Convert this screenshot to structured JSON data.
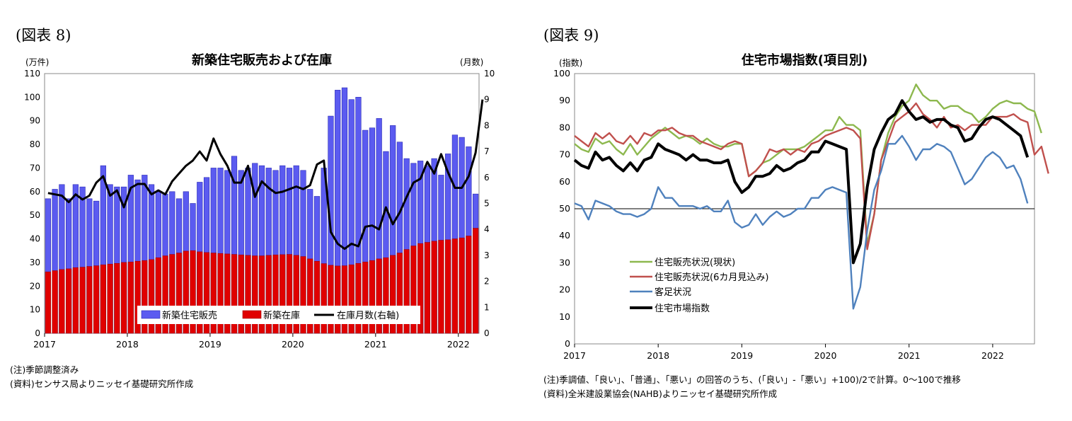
{
  "figure8": {
    "label": "(図表 8)",
    "notes": [
      "(注)季節調整済み",
      "(資料)センサス局よりニッセイ基礎研究所作成"
    ]
  },
  "figure9": {
    "label": "(図表 9)",
    "notes": [
      "(注)季調値、「良い」、「普通」、「悪い」の回答のうち、(「良い」-「悪い」+100)/2で計算。0〜100で推移",
      "(資料)全米建設業協会(NAHB)よりニッセイ基礎研究所作成"
    ]
  },
  "chart_data": [
    {
      "type": "bar",
      "title": "新築住宅販売および在庫",
      "ylabel": "(万件)",
      "y2label": "(月数)",
      "ylim": [
        0,
        110
      ],
      "y2lim": [
        0,
        10
      ],
      "yticks": [
        0,
        10,
        20,
        30,
        40,
        50,
        60,
        70,
        80,
        90,
        100,
        110
      ],
      "y2ticks": [
        0,
        1,
        2,
        3,
        4,
        5,
        6,
        7,
        8,
        9,
        10
      ],
      "xticks": [
        "2017",
        "2018",
        "2019",
        "2020",
        "2021",
        "2022"
      ],
      "start": "2017-01",
      "legend_position": "bottom-center",
      "series": [
        {
          "name": "新築住宅販売",
          "kind": "bar",
          "color": "#5b5bf0",
          "values": [
            57,
            61,
            63,
            57,
            63,
            62,
            57,
            56,
            71,
            63,
            62,
            62,
            67,
            65,
            67,
            63,
            60,
            59,
            60,
            57,
            60,
            55,
            64,
            66,
            70,
            70,
            69,
            75,
            69,
            70,
            72,
            71,
            70,
            69,
            71,
            70,
            71,
            69,
            61,
            58,
            70,
            92,
            103,
            104,
            99,
            100,
            86,
            87,
            91,
            77,
            88,
            81,
            74,
            72,
            73,
            71,
            74,
            67,
            76,
            84,
            83,
            79,
            59
          ]
        },
        {
          "name": "新築在庫",
          "kind": "bar",
          "color": "#e00000",
          "values": [
            26,
            26.5,
            27,
            27.3,
            27.8,
            28,
            28.3,
            28.6,
            29,
            29.3,
            29.6,
            30,
            30.2,
            30.5,
            30.8,
            31.2,
            32,
            32.8,
            33.4,
            34,
            34.8,
            35,
            34.5,
            34.2,
            34,
            33.8,
            33.6,
            33.4,
            33.2,
            33,
            32.8,
            32.8,
            33,
            33.2,
            33.3,
            33.4,
            33,
            32.5,
            31.5,
            30.5,
            29.5,
            28.8,
            28.5,
            28.6,
            29,
            29.6,
            30.2,
            30.8,
            31.5,
            32,
            33,
            34,
            35.5,
            37,
            38,
            38.5,
            39,
            39.4,
            39.6,
            40,
            40.4,
            41.2,
            44.5
          ]
        },
        {
          "name": "在庫月数(右軸)",
          "kind": "line",
          "axis": "right",
          "color": "#000000",
          "values": [
            5.4,
            5.35,
            5.3,
            5.05,
            5.35,
            5.15,
            5.3,
            5.8,
            6.05,
            5.3,
            5.5,
            4.85,
            5.6,
            5.75,
            5.75,
            5.35,
            5.5,
            5.35,
            5.85,
            6.15,
            6.45,
            6.65,
            7.0,
            6.65,
            7.5,
            6.9,
            6.45,
            5.8,
            5.8,
            6.45,
            5.25,
            5.85,
            5.6,
            5.4,
            5.45,
            5.55,
            5.65,
            5.55,
            5.7,
            6.5,
            6.65,
            3.9,
            3.45,
            3.25,
            3.45,
            3.35,
            4.1,
            4.15,
            4.0,
            4.85,
            4.2,
            4.65,
            5.25,
            5.8,
            5.95,
            6.6,
            6.15,
            6.9,
            6.2,
            5.6,
            5.6,
            6.05,
            6.95,
            9.0
          ]
        }
      ]
    },
    {
      "type": "line",
      "title": "住宅市場指数(項目別)",
      "ylabel": "(指数)",
      "ylim": [
        0,
        100
      ],
      "yticks": [
        0,
        10,
        20,
        30,
        40,
        50,
        60,
        70,
        80,
        90,
        100
      ],
      "xticks": [
        "2017",
        "2018",
        "2019",
        "2020",
        "2021",
        "2022"
      ],
      "start": "2017-01",
      "reference_line": 50,
      "legend_position": "bottom-left",
      "series": [
        {
          "name": "住宅販売状況(現状)",
          "color": "#8db84e",
          "values": [
            74,
            72,
            71,
            76,
            74,
            75,
            72,
            70,
            74,
            70,
            73,
            76,
            78,
            80,
            78,
            76,
            77,
            76,
            74,
            76,
            74,
            73,
            73,
            74,
            74,
            62,
            64,
            67,
            68,
            70,
            72,
            72,
            72,
            73,
            75,
            77,
            79,
            79,
            84,
            81,
            81,
            79,
            37,
            48,
            68,
            78,
            84,
            88,
            90,
            96,
            92,
            90,
            90,
            87,
            88,
            88,
            86,
            85,
            82,
            84,
            87,
            89,
            90,
            89,
            89,
            87,
            86,
            78
          ]
        },
        {
          "name": "住宅販売状況(6カ月見込み)",
          "color": "#c0504d",
          "values": [
            77,
            75,
            73,
            78,
            76,
            78,
            75,
            74,
            77,
            74,
            78,
            77,
            79,
            79,
            80,
            78,
            77,
            77,
            75,
            74,
            73,
            72,
            74,
            75,
            74,
            62,
            64,
            67,
            72,
            71,
            72,
            70,
            72,
            71,
            74,
            75,
            77,
            78,
            79,
            80,
            79,
            76,
            35,
            48,
            68,
            75,
            82,
            84,
            86,
            89,
            85,
            83,
            80,
            84,
            80,
            81,
            79,
            81,
            81,
            81,
            84,
            84,
            84,
            85,
            83,
            82,
            70,
            73,
            63
          ]
        },
        {
          "name": "客足状況",
          "color": "#4f81bd",
          "values": [
            52,
            51,
            46,
            53,
            52,
            51,
            49,
            48,
            48,
            47,
            48,
            50,
            58,
            54,
            54,
            51,
            51,
            51,
            50,
            51,
            49,
            49,
            53,
            45,
            43,
            44,
            48,
            44,
            47,
            49,
            47,
            48,
            50,
            50,
            54,
            54,
            57,
            58,
            57,
            56,
            13,
            21,
            42,
            57,
            64,
            74,
            74,
            77,
            73,
            68,
            72,
            72,
            74,
            73,
            71,
            65,
            59,
            61,
            65,
            69,
            71,
            69,
            65,
            66,
            61,
            52
          ]
        },
        {
          "name": "住宅市場指数",
          "color": "#000000",
          "values": [
            68,
            66,
            65,
            71,
            68,
            69,
            66,
            64,
            67,
            64,
            68,
            69,
            74,
            72,
            71,
            70,
            68,
            70,
            68,
            68,
            67,
            67,
            68,
            60,
            56,
            58,
            62,
            62,
            63,
            66,
            64,
            65,
            67,
            68,
            71,
            71,
            75,
            74,
            73,
            72,
            30,
            37,
            58,
            72,
            78,
            83,
            85,
            90,
            86,
            83,
            84,
            82,
            83,
            83,
            81,
            80,
            75,
            76,
            80,
            83,
            84,
            83,
            81,
            79,
            77,
            69
          ]
        }
      ]
    }
  ]
}
